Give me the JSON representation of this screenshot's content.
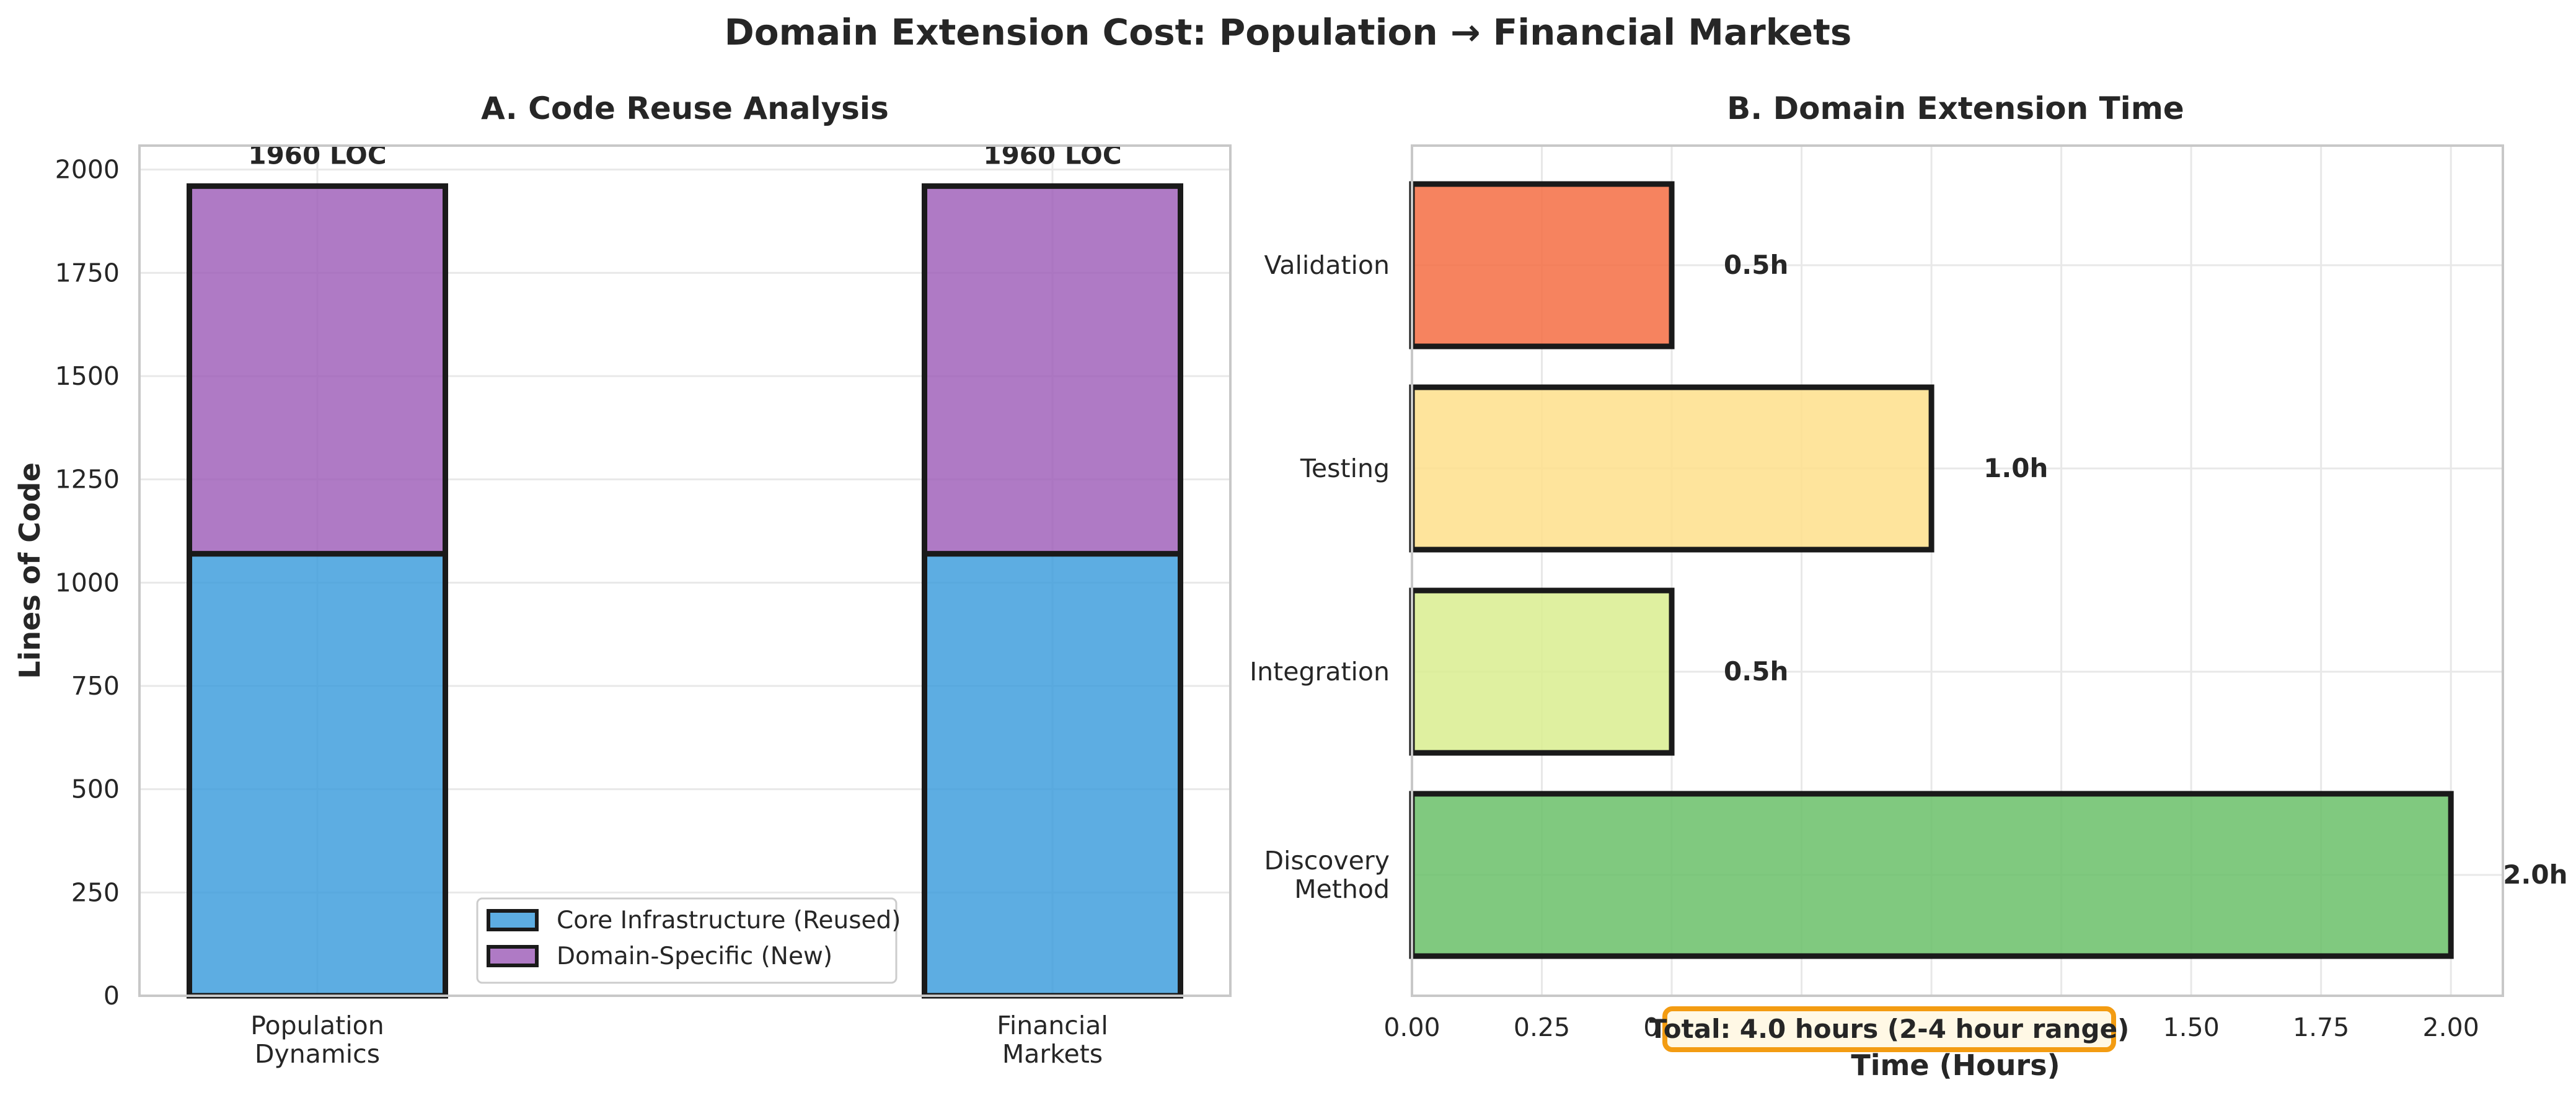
{
  "figure_title": "Domain Extension Cost: Population → Financial Markets",
  "chart_data": [
    {
      "type": "bar",
      "stacked": true,
      "title": "A. Code Reuse Analysis",
      "xlabel": "",
      "ylabel": "Lines of Code",
      "categories": [
        [
          "Population",
          "Dynamics"
        ],
        [
          "Financial",
          "Markets"
        ]
      ],
      "series": [
        {
          "name": "Core Infrastructure (Reused)",
          "values": [
            1070,
            1070
          ],
          "color": "#3498db"
        },
        {
          "name": "Domain-Specific (New)",
          "values": [
            890,
            890
          ],
          "color": "#9b59b6"
        }
      ],
      "totals_labels": [
        "1960 LOC",
        "1960 LOC"
      ],
      "ylim": [
        0,
        2058
      ],
      "yticks": [
        "0",
        "250",
        "500",
        "750",
        "1000",
        "1250",
        "1500",
        "1750",
        "2000"
      ],
      "grid": true,
      "legend": "lower-right"
    },
    {
      "type": "bar",
      "orientation": "horizontal",
      "title": "B. Domain Extension Time",
      "xlabel": "Time (Hours)",
      "ylabel": "",
      "categories": [
        [
          "Discovery",
          "Method"
        ],
        [
          "Integration"
        ],
        [
          "Testing"
        ],
        [
          "Validation"
        ]
      ],
      "values": [
        2.0,
        0.5,
        1.0,
        0.5
      ],
      "value_labels": [
        "2.0h",
        "0.5h",
        "1.0h",
        "0.5h"
      ],
      "colors": [
        "#6abf69",
        "#d9ed8f",
        "#fedf8b",
        "#f46d43"
      ],
      "xlim": [
        0,
        2.1
      ],
      "xticks": [
        "0.00",
        "0.25",
        "0.50",
        "0.75",
        "1.00",
        "1.25",
        "1.50",
        "1.75",
        "2.00"
      ],
      "grid": true,
      "annotation": "Total: 4.0 hours (2-4 hour range)",
      "annotation_color": "#f39c12"
    }
  ]
}
